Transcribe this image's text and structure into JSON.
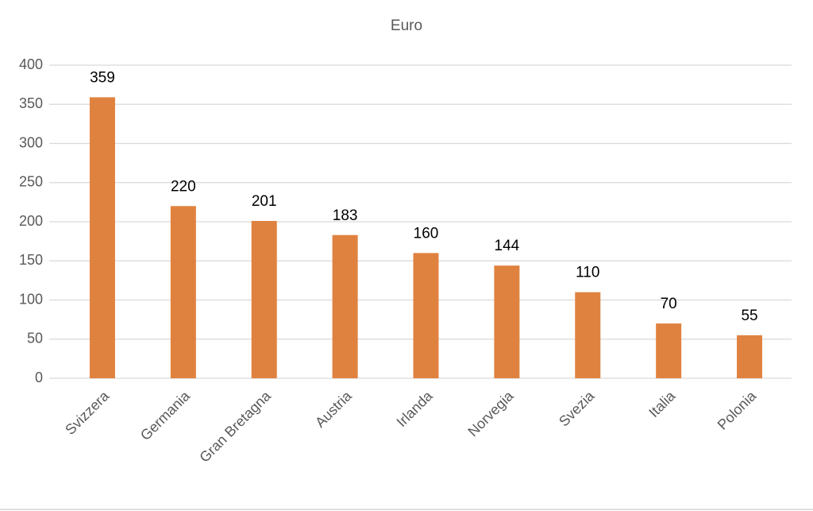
{
  "chart_data": {
    "type": "bar",
    "title": "Euro",
    "categories": [
      "Svizzera",
      "Germania",
      "Gran Bretagna",
      "Austria",
      "Irlanda",
      "Norvegia",
      "Svezia",
      "Italia",
      "Polonia"
    ],
    "values": [
      359,
      220,
      201,
      183,
      160,
      144,
      110,
      70,
      55
    ],
    "color": "#e0823f",
    "ylim": [
      0,
      400
    ],
    "yticks": [
      0,
      50,
      100,
      150,
      200,
      250,
      300,
      350,
      400
    ],
    "grid": true
  }
}
